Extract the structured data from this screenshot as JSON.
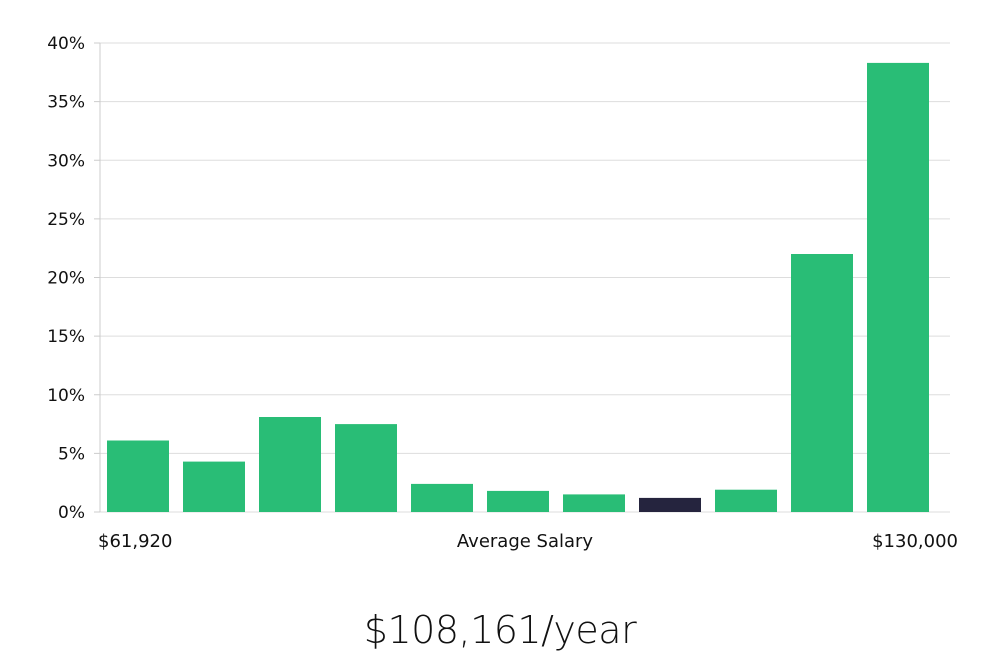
{
  "chart_data": {
    "type": "bar",
    "title": "",
    "xlabel": "Average Salary",
    "ylabel": "",
    "x_min_label": "$61,920",
    "x_max_label": "$130,000",
    "ylim": [
      0,
      40
    ],
    "ytick_values": [
      0,
      5,
      10,
      15,
      20,
      25,
      30,
      35,
      40
    ],
    "ytick_labels": [
      "0%",
      "5%",
      "10%",
      "15%",
      "20%",
      "25%",
      "30%",
      "35%",
      "40%"
    ],
    "grid": true,
    "legend": "none",
    "values": [
      6.1,
      4.3,
      8.1,
      7.5,
      2.4,
      1.8,
      1.5,
      1.2,
      1.9,
      22.0,
      38.3
    ],
    "highlight_index": 7,
    "colors": {
      "bar": "#29bd76",
      "highlight": "#25243e",
      "grid": "#dddddd",
      "axis": "#cccccc"
    }
  },
  "summary": {
    "salary": "$108,161/year"
  }
}
